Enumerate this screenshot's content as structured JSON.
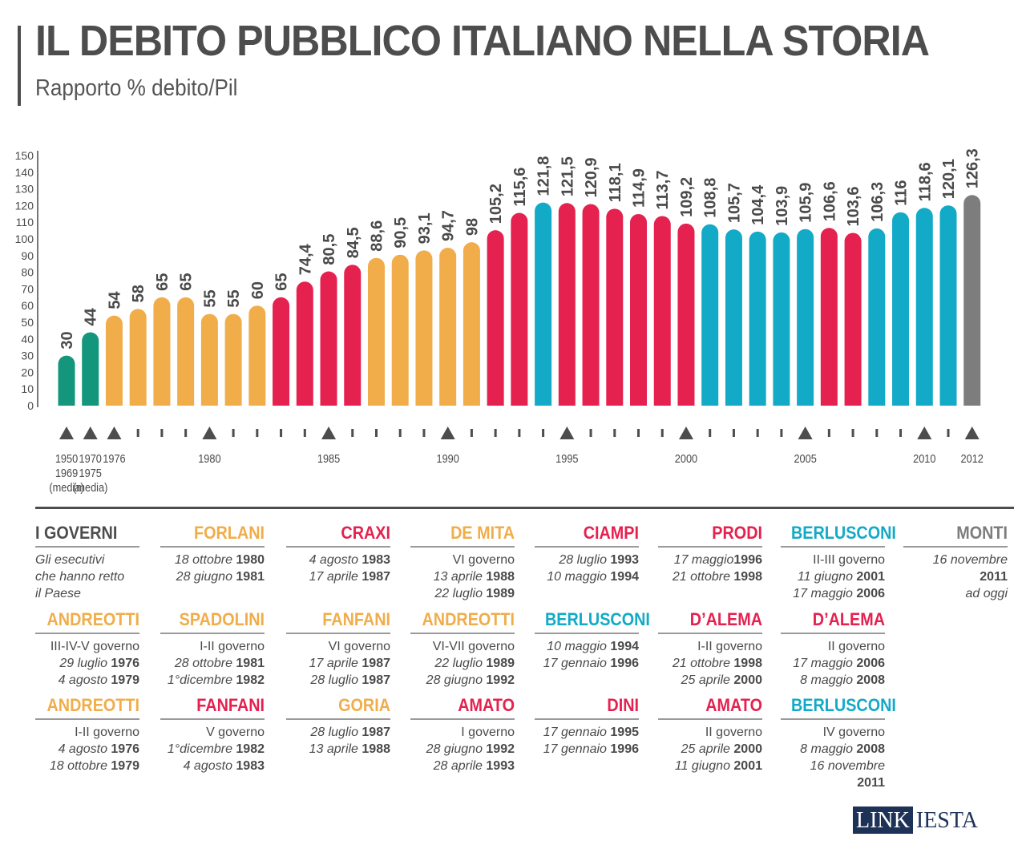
{
  "header": {
    "title": "IL DEBITO PUBBLICO ITALIANO NELLA STORIA",
    "subtitle": "Rapporto % debito/Pil"
  },
  "colors": {
    "green": "#13967b",
    "orange": "#f0ad4a",
    "red": "#e5214f",
    "blue": "#12aac7",
    "gray": "#7d7d7d"
  },
  "chart_data": {
    "type": "bar",
    "ylim": [
      0,
      150
    ],
    "yticks": [
      0,
      10,
      20,
      30,
      40,
      50,
      60,
      70,
      80,
      90,
      100,
      110,
      120,
      130,
      140,
      150
    ],
    "values": [
      30,
      44,
      54,
      58,
      65,
      65,
      55,
      55,
      60,
      65,
      74.4,
      80.5,
      84.5,
      88.6,
      90.5,
      93.1,
      94.7,
      98,
      105.2,
      115.6,
      121.8,
      121.5,
      120.9,
      118.1,
      114.9,
      113.7,
      109.2,
      108.8,
      105.7,
      104.4,
      103.9,
      105.9,
      106.6,
      103.6,
      106.3,
      116,
      118.6,
      120.1,
      126.3
    ],
    "value_labels": [
      "30",
      "44",
      "54",
      "58",
      "65",
      "65",
      "55",
      "55",
      "60",
      "65",
      "74,4",
      "80,5",
      "84,5",
      "88,6",
      "90,5",
      "93,1",
      "94,7",
      "98",
      "105,2",
      "115,6",
      "121,8",
      "121,5",
      "120,9",
      "118,1",
      "114,9",
      "113,7",
      "109,2",
      "108,8",
      "105,7",
      "104,4",
      "103,9",
      "105,9",
      "106,6",
      "103,6",
      "106,3",
      "116",
      "118,6",
      "120,1",
      "126,3"
    ],
    "bar_colors": [
      "green",
      "green",
      "orange",
      "orange",
      "orange",
      "orange",
      "orange",
      "orange",
      "orange",
      "red",
      "red",
      "red",
      "red",
      "orange",
      "orange",
      "orange",
      "orange",
      "orange",
      "red",
      "red",
      "blue",
      "red",
      "red",
      "red",
      "red",
      "red",
      "red",
      "blue",
      "blue",
      "blue",
      "blue",
      "blue",
      "red",
      "red",
      "blue",
      "blue",
      "blue",
      "blue",
      "gray"
    ],
    "x_markers": [
      "triangle",
      "triangle",
      "triangle",
      "tick",
      "tick",
      "tick",
      "triangle",
      "tick",
      "tick",
      "tick",
      "tick",
      "triangle",
      "tick",
      "tick",
      "tick",
      "tick",
      "triangle",
      "tick",
      "tick",
      "tick",
      "tick",
      "triangle",
      "tick",
      "tick",
      "tick",
      "tick",
      "triangle",
      "tick",
      "tick",
      "tick",
      "tick",
      "triangle",
      "tick",
      "tick",
      "tick",
      "tick",
      "triangle",
      "tick",
      "triangle"
    ],
    "x_labels": [
      {
        "index": 0,
        "lines": [
          "1950",
          "1969",
          "(media)"
        ]
      },
      {
        "index": 1,
        "lines": [
          "1970",
          "1975",
          "(media)"
        ]
      },
      {
        "index": 2,
        "lines": [
          "1976"
        ]
      },
      {
        "index": 6,
        "lines": [
          "1980"
        ]
      },
      {
        "index": 11,
        "lines": [
          "1985"
        ]
      },
      {
        "index": 16,
        "lines": [
          "1990"
        ]
      },
      {
        "index": 21,
        "lines": [
          "1995"
        ]
      },
      {
        "index": 26,
        "lines": [
          "2000"
        ]
      },
      {
        "index": 31,
        "lines": [
          "2005"
        ]
      },
      {
        "index": 36,
        "lines": [
          "2010"
        ]
      },
      {
        "index": 38,
        "lines": [
          "2012"
        ]
      }
    ]
  },
  "governi": {
    "intro": {
      "name": "I GOVERNI",
      "color": "#4d4d4d",
      "lines": [
        [
          {
            "t": "Gli esecutivi",
            "s": "i"
          }
        ],
        [
          {
            "t": "che hanno retto",
            "s": "i"
          }
        ],
        [
          {
            "t": "il Paese",
            "s": "i"
          }
        ]
      ]
    },
    "g1": {
      "name": "FORLANI",
      "color": "#f0ad4a",
      "lines": [
        [
          {
            "t": "18 ottobre ",
            "s": "i"
          },
          {
            "t": "1980",
            "s": "b"
          }
        ],
        [
          {
            "t": "28 giugno ",
            "s": "i"
          },
          {
            "t": "1981",
            "s": "b"
          }
        ]
      ]
    },
    "g2": {
      "name": "CRAXI",
      "color": "#e5214f",
      "lines": [
        [
          {
            "t": "4 agosto ",
            "s": "i"
          },
          {
            "t": "1983",
            "s": "b"
          }
        ],
        [
          {
            "t": "17 aprile ",
            "s": "i"
          },
          {
            "t": "1987",
            "s": "b"
          }
        ]
      ]
    },
    "g3": {
      "name": "DE MITA",
      "color": "#f0ad4a",
      "lines": [
        [
          {
            "t": "VI governo",
            "s": "n"
          }
        ],
        [
          {
            "t": "13 aprile ",
            "s": "i"
          },
          {
            "t": "1988",
            "s": "b"
          }
        ],
        [
          {
            "t": "22 luglio ",
            "s": "i"
          },
          {
            "t": "1989",
            "s": "b"
          }
        ]
      ]
    },
    "g4": {
      "name": "CIAMPI",
      "color": "#e5214f",
      "lines": [
        [
          {
            "t": "28 luglio ",
            "s": "i"
          },
          {
            "t": "1993",
            "s": "b"
          }
        ],
        [
          {
            "t": "10 maggio ",
            "s": "i"
          },
          {
            "t": "1994",
            "s": "b"
          }
        ]
      ]
    },
    "g5": {
      "name": "PRODI",
      "color": "#e5214f",
      "lines": [
        [
          {
            "t": "17 maggio",
            "s": "i"
          },
          {
            "t": "1996",
            "s": "b"
          }
        ],
        [
          {
            "t": "21 ottobre ",
            "s": "i"
          },
          {
            "t": "1998",
            "s": "b"
          }
        ]
      ]
    },
    "g6": {
      "name": "BERLUSCONI",
      "color": "#12aac7",
      "lines": [
        [
          {
            "t": "II-III governo",
            "s": "n"
          }
        ],
        [
          {
            "t": "11 giugno ",
            "s": "i"
          },
          {
            "t": "2001",
            "s": "b"
          }
        ],
        [
          {
            "t": "17 maggio ",
            "s": "i"
          },
          {
            "t": "2006",
            "s": "b"
          }
        ]
      ]
    },
    "g7": {
      "name": "MONTI",
      "color": "#7d7d7d",
      "lines": [
        [
          {
            "t": "16 novembre",
            "s": "i"
          }
        ],
        [
          {
            "t": "2011",
            "s": "b"
          }
        ],
        [
          {
            "t": "ad oggi",
            "s": "i"
          }
        ]
      ]
    },
    "g8": {
      "name": "ANDREOTTI",
      "color": "#f0ad4a",
      "lines": [
        [
          {
            "t": "III-IV-V governo",
            "s": "n"
          }
        ],
        [
          {
            "t": "29 luglio ",
            "s": "i"
          },
          {
            "t": "1976",
            "s": "b"
          }
        ],
        [
          {
            "t": "4 agosto ",
            "s": "i"
          },
          {
            "t": "1979",
            "s": "b"
          }
        ]
      ]
    },
    "g9": {
      "name": "SPADOLINI",
      "color": "#f0ad4a",
      "lines": [
        [
          {
            "t": "I-II governo",
            "s": "n"
          }
        ],
        [
          {
            "t": "28 ottobre ",
            "s": "i"
          },
          {
            "t": "1981",
            "s": "b"
          }
        ],
        [
          {
            "t": "1°dicembre ",
            "s": "i"
          },
          {
            "t": "1982",
            "s": "b"
          }
        ]
      ]
    },
    "g10": {
      "name": "FANFANI",
      "color": "#f0ad4a",
      "lines": [
        [
          {
            "t": "VI governo",
            "s": "n"
          }
        ],
        [
          {
            "t": "17 aprile ",
            "s": "i"
          },
          {
            "t": "1987",
            "s": "b"
          }
        ],
        [
          {
            "t": "28 luglio ",
            "s": "i"
          },
          {
            "t": "1987",
            "s": "b"
          }
        ]
      ]
    },
    "g11": {
      "name": "ANDREOTTI",
      "color": "#f0ad4a",
      "lines": [
        [
          {
            "t": "VI-VII governo",
            "s": "n"
          }
        ],
        [
          {
            "t": "22 luglio ",
            "s": "i"
          },
          {
            "t": "1989",
            "s": "b"
          }
        ],
        [
          {
            "t": "28 giugno ",
            "s": "i"
          },
          {
            "t": "1992",
            "s": "b"
          }
        ]
      ]
    },
    "g12": {
      "name": "BERLUSCONI",
      "color": "#12aac7",
      "lines": [
        [
          {
            "t": "10 maggio ",
            "s": "i"
          },
          {
            "t": "1994",
            "s": "b"
          }
        ],
        [
          {
            "t": "17 gennaio ",
            "s": "i"
          },
          {
            "t": "1996",
            "s": "b"
          }
        ]
      ]
    },
    "g13": {
      "name": "D’ALEMA",
      "color": "#e5214f",
      "lines": [
        [
          {
            "t": "I-II governo",
            "s": "n"
          }
        ],
        [
          {
            "t": "21 ottobre ",
            "s": "i"
          },
          {
            "t": "1998",
            "s": "b"
          }
        ],
        [
          {
            "t": "25 aprile ",
            "s": "i"
          },
          {
            "t": "2000",
            "s": "b"
          }
        ]
      ]
    },
    "g14": {
      "name": "D’ALEMA",
      "color": "#e5214f",
      "lines": [
        [
          {
            "t": "II governo",
            "s": "n"
          }
        ],
        [
          {
            "t": "17 maggio ",
            "s": "i"
          },
          {
            "t": "2006",
            "s": "b"
          }
        ],
        [
          {
            "t": "8 maggio ",
            "s": "i"
          },
          {
            "t": "2008",
            "s": "b"
          }
        ]
      ]
    },
    "g15": {
      "name": "ANDREOTTI",
      "color": "#f0ad4a",
      "lines": [
        [
          {
            "t": "I-II governo",
            "s": "n"
          }
        ],
        [
          {
            "t": "4 agosto  ",
            "s": "i"
          },
          {
            "t": "1976",
            "s": "b"
          }
        ],
        [
          {
            "t": "18 ottobre ",
            "s": "i"
          },
          {
            "t": "1979",
            "s": "b"
          }
        ]
      ]
    },
    "g16": {
      "name": "FANFANI",
      "color": "#e5214f",
      "lines": [
        [
          {
            "t": "V governo",
            "s": "n"
          }
        ],
        [
          {
            "t": "1°dicembre ",
            "s": "i"
          },
          {
            "t": "1982",
            "s": "b"
          }
        ],
        [
          {
            "t": "4 agosto ",
            "s": "i"
          },
          {
            "t": "1983",
            "s": "b"
          }
        ]
      ]
    },
    "g17": {
      "name": "GORIA",
      "color": "#f0ad4a",
      "lines": [
        [
          {
            "t": "28 luglio ",
            "s": "i"
          },
          {
            "t": "1987",
            "s": "b"
          }
        ],
        [
          {
            "t": "13 aprile ",
            "s": "i"
          },
          {
            "t": "1988",
            "s": "b"
          }
        ]
      ]
    },
    "g18": {
      "name": "AMATO",
      "color": "#e5214f",
      "lines": [
        [
          {
            "t": "I governo",
            "s": "n"
          }
        ],
        [
          {
            "t": "28 giugno ",
            "s": "i"
          },
          {
            "t": "1992",
            "s": "b"
          }
        ],
        [
          {
            "t": "28 aprile ",
            "s": "i"
          },
          {
            "t": "1993",
            "s": "b"
          }
        ]
      ]
    },
    "g19": {
      "name": "DINI",
      "color": "#e5214f",
      "lines": [
        [
          {
            "t": "17 gennaio ",
            "s": "i"
          },
          {
            "t": "1995",
            "s": "b"
          }
        ],
        [
          {
            "t": "17 gennaio ",
            "s": "i"
          },
          {
            "t": "1996",
            "s": "b"
          }
        ]
      ]
    },
    "g20": {
      "name": "AMATO",
      "color": "#e5214f",
      "lines": [
        [
          {
            "t": "II governo",
            "s": "n"
          }
        ],
        [
          {
            "t": "25 aprile ",
            "s": "i"
          },
          {
            "t": "2000",
            "s": "b"
          }
        ],
        [
          {
            "t": "11 giugno ",
            "s": "i"
          },
          {
            "t": "2001",
            "s": "b"
          }
        ]
      ]
    },
    "g21": {
      "name": "BERLUSCONI",
      "color": "#12aac7",
      "lines": [
        [
          {
            "t": "IV governo",
            "s": "n"
          }
        ],
        [
          {
            "t": "8 maggio ",
            "s": "i"
          },
          {
            "t": "2008",
            "s": "b"
          }
        ],
        [
          {
            "t": "16 novembre",
            "s": "i"
          }
        ],
        [
          {
            "t": "2011",
            "s": "b"
          }
        ]
      ]
    }
  },
  "logo": {
    "part1": "LINK",
    "part2": "IESTA"
  }
}
